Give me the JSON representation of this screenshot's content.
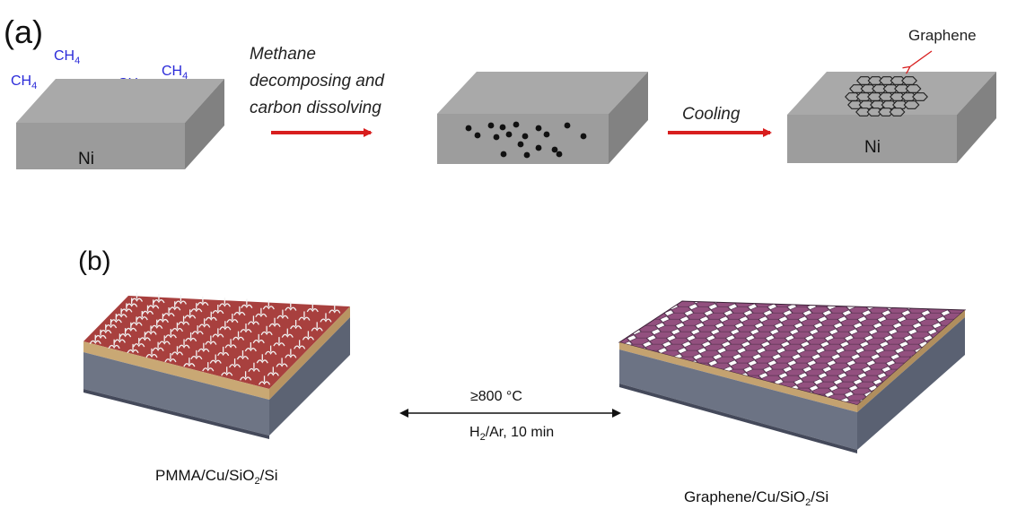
{
  "panel_a": {
    "label": "(a)",
    "ch4": [
      "CH",
      "CH",
      "CH",
      "CH"
    ],
    "ch4_sub": "4",
    "block1_label": "Ni",
    "step1_line1": "Methane",
    "step1_line2": "decomposing and",
    "step1_line3": "carbon dissolving",
    "step2": "Cooling",
    "graphene_label": "Graphene",
    "block3_label": "Ni"
  },
  "panel_b": {
    "label": "(b)",
    "condition_temp": "≥800 °C",
    "condition_gas_a": "H",
    "condition_gas_sub": "2",
    "condition_gas_b": "/Ar, 10 min",
    "left_a": "PMMA/Cu/SiO",
    "left_sub": "2",
    "left_b": "/Si",
    "right_a": "Graphene/Cu/SiO",
    "right_sub": "2",
    "right_b": "/Si"
  },
  "colors": {
    "ch4": "#2b2bd9",
    "arrow_red": "#d81e1e",
    "slab_top": "#a7a7a7",
    "slab_front": "#9a9a9a",
    "slab_side": "#808080",
    "film_red": "#a8403e",
    "graphene_purple": "#8a4a78"
  }
}
